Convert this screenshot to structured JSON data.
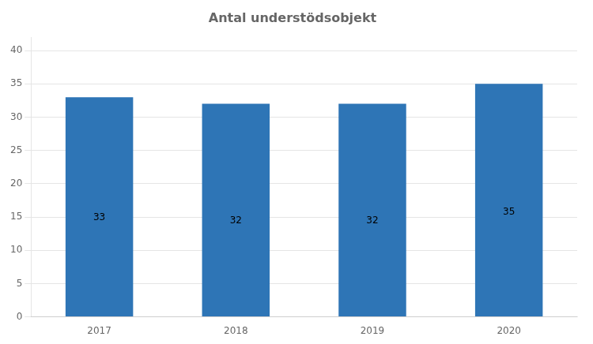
{
  "chart_data": {
    "type": "bar",
    "title": "Antal understödsobjekt",
    "categories": [
      "2017",
      "2018",
      "2019",
      "2020"
    ],
    "values": [
      33,
      32,
      32,
      35
    ],
    "color": "#2E75B6",
    "ylim": [
      0,
      42
    ],
    "yticks": [
      0,
      5,
      10,
      15,
      20,
      25,
      30,
      35,
      40
    ],
    "grid": true,
    "data_labels": true
  }
}
